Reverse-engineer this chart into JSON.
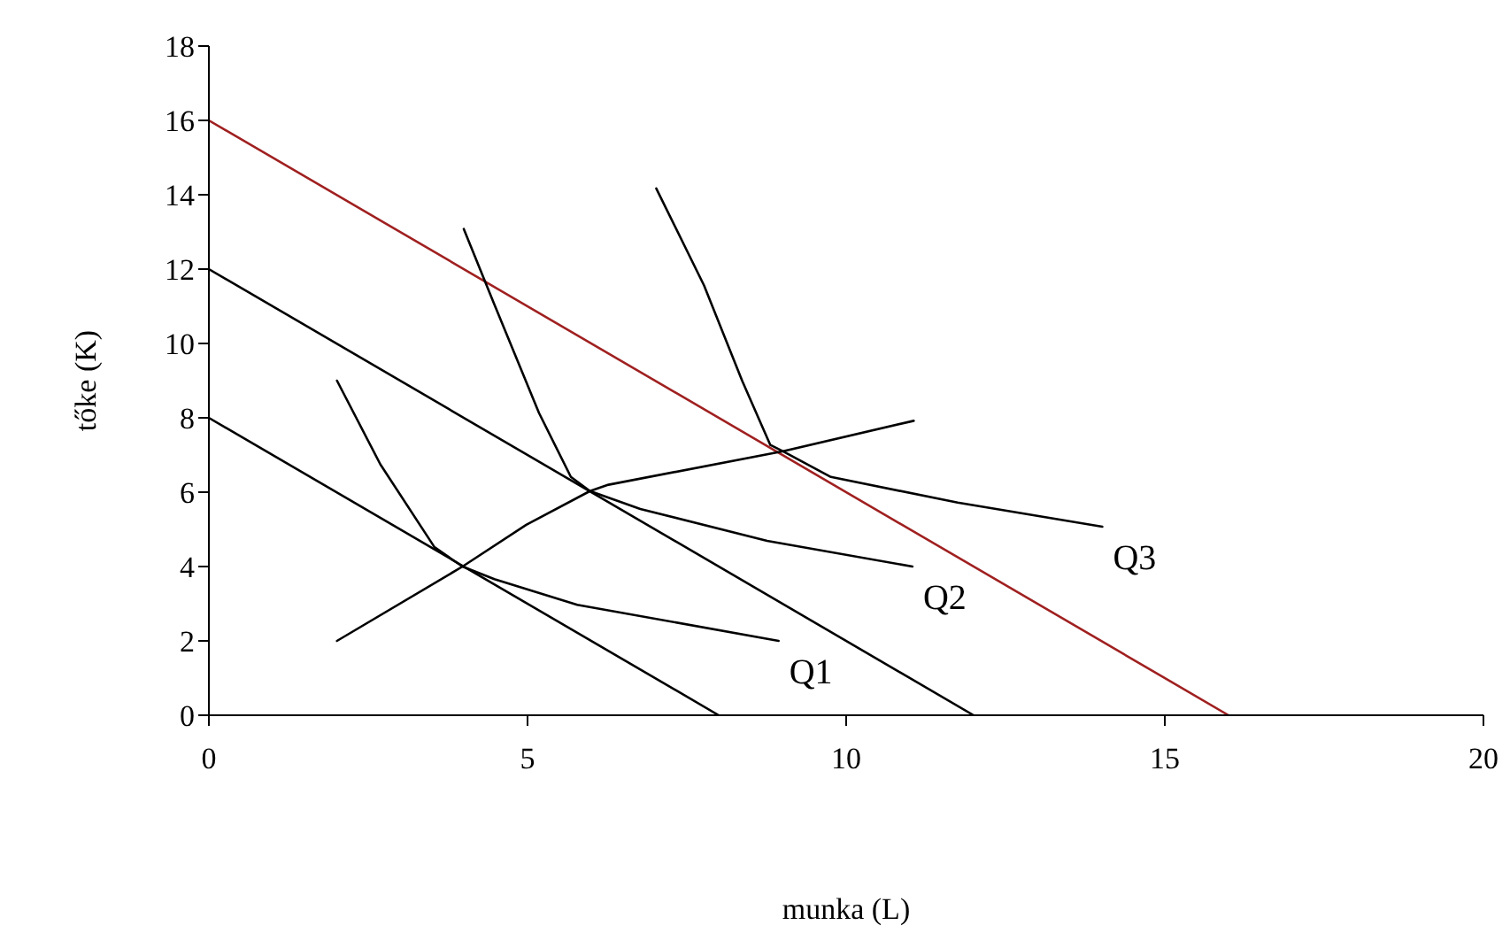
{
  "chart_data": {
    "type": "line",
    "xlabel": "munka (L)",
    "ylabel": "tőke (K)",
    "xlim": [
      0,
      20
    ],
    "xticks": [
      0,
      5,
      10,
      15,
      20
    ],
    "ylim": [
      0,
      18
    ],
    "yticks": [
      0,
      2,
      4,
      6,
      8,
      10,
      12,
      14,
      16,
      18
    ],
    "grid": false,
    "legend": false,
    "marker": "none",
    "line_style": "solid",
    "series": [
      {
        "color": "#000000",
        "x": [
          0,
          8
        ],
        "values": [
          8,
          0
        ]
      },
      {
        "color": "#000000",
        "x": [
          0,
          12
        ],
        "values": [
          12,
          0
        ]
      },
      {
        "color": "#a02020",
        "x": [
          0,
          16
        ],
        "values": [
          16,
          0
        ]
      },
      {
        "name": "Q1",
        "color": "#000000",
        "x": [
          2.01,
          2.69,
          3.54,
          3.98,
          4.48,
          5.78,
          8.94
        ],
        "values": [
          9.0,
          6.75,
          4.52,
          4.0,
          3.66,
          2.97,
          2.0
        ]
      },
      {
        "name": "Q2",
        "color": "#000000",
        "x": [
          4.0,
          4.48,
          5.18,
          5.68,
          5.98,
          6.77,
          8.76,
          11.04
        ],
        "values": [
          13.08,
          11.05,
          8.13,
          6.41,
          6.03,
          5.55,
          4.69,
          4.0
        ]
      },
      {
        "name": "Q3",
        "color": "#000000",
        "x": [
          7.02,
          7.77,
          8.37,
          8.81,
          9.01,
          9.76,
          11.75,
          14.02
        ],
        "values": [
          14.17,
          11.56,
          8.99,
          7.27,
          7.1,
          6.41,
          5.72,
          5.07
        ]
      },
      {
        "color": "#000000",
        "x": [
          2.01,
          3.98,
          4.98,
          5.98,
          6.27,
          9.01,
          11.06
        ],
        "values": [
          2.0,
          4.0,
          5.12,
          6.03,
          6.2,
          7.1,
          7.92
        ]
      }
    ]
  }
}
